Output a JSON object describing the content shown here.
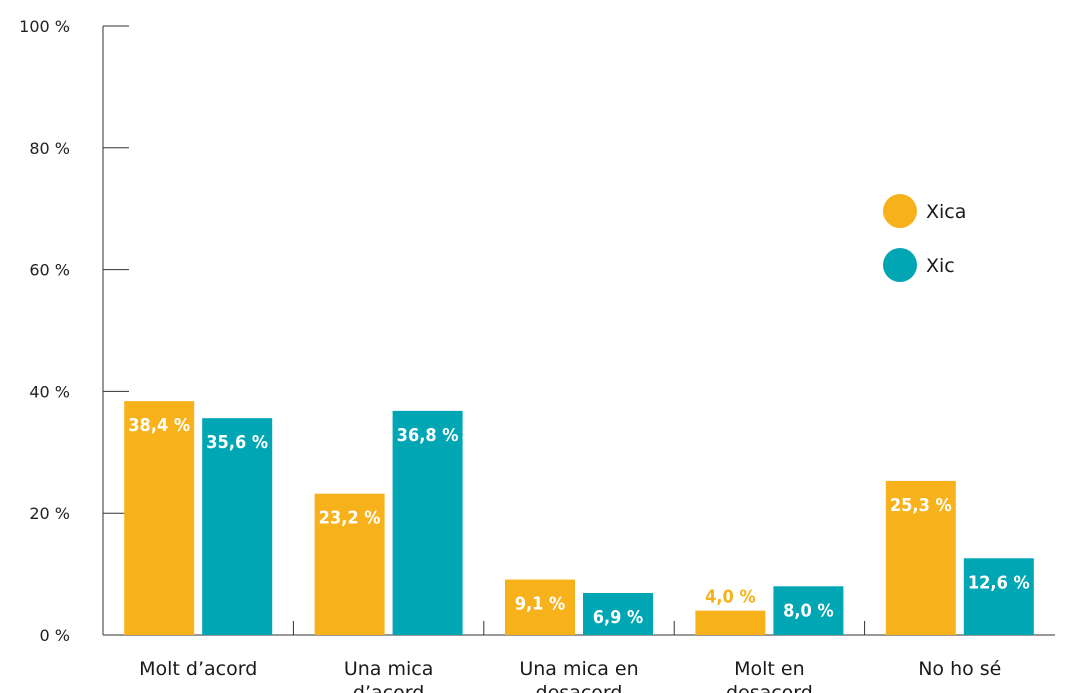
{
  "chart_data": {
    "type": "bar",
    "categories": [
      "Molt d’acord",
      "Una mica d’acord",
      "Una mica en desacord",
      "Molt en desacord",
      "No ho sé"
    ],
    "category_lines": [
      [
        "Molt d’acord"
      ],
      [
        "Una mica",
        "d’acord"
      ],
      [
        "Una mica en",
        "desacord"
      ],
      [
        "Molt en",
        "desacord"
      ],
      [
        "No ho sé"
      ]
    ],
    "series": [
      {
        "name": "Xica",
        "color": "#F7B21B",
        "values": [
          38.4,
          23.2,
          9.1,
          4.0,
          25.3
        ],
        "labels": [
          "38,4 %",
          "23,2 %",
          "9,1 %",
          "4,0 %",
          "25,3 %"
        ]
      },
      {
        "name": "Xic",
        "color": "#00A6B4",
        "values": [
          35.6,
          36.8,
          6.9,
          8.0,
          12.6
        ],
        "labels": [
          "35,6 %",
          "36,8 %",
          "6,9 %",
          "8,0 %",
          "12,6 %"
        ]
      }
    ],
    "yticks": [
      0,
      20,
      40,
      60,
      80,
      100
    ],
    "ytick_labels": [
      "0 %",
      "20 %",
      "40 %",
      "60 %",
      "80 %",
      "100 %"
    ],
    "ylim": [
      0,
      100
    ],
    "legend_position": "right",
    "grid": false,
    "title": "",
    "xlabel": "",
    "ylabel": ""
  }
}
